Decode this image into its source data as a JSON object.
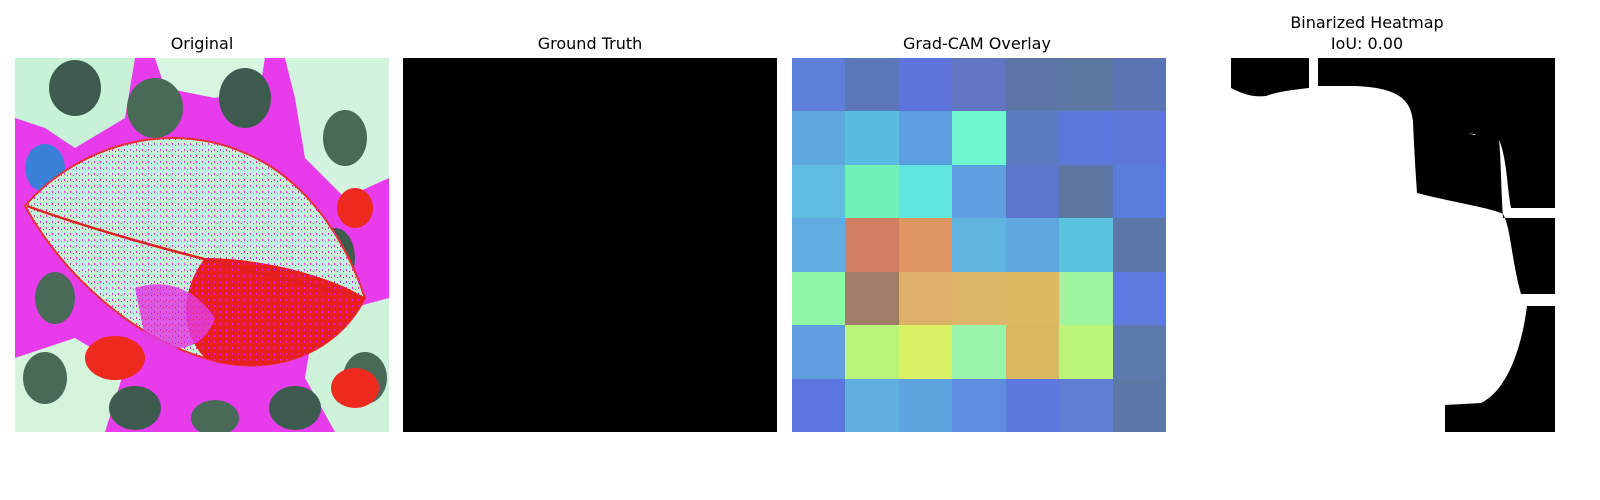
{
  "panels": [
    {
      "title": "Original"
    },
    {
      "title": "Ground Truth"
    },
    {
      "title": "Grad-CAM Overlay"
    },
    {
      "title": "Binarized Heatmap",
      "subtitle": "IoU: 0.00"
    }
  ],
  "colors": {
    "background": "#ffffff",
    "mask_fg": "#000000",
    "mask_bg": "#ffffff"
  },
  "gradcam_grid": [
    [
      "#5d7fd9",
      "#5b77ba",
      "#5d74dc",
      "#6076c2",
      "#5b75a7",
      "#5b78a3",
      "#5b74b3"
    ],
    [
      "#5fa8df",
      "#58bde0",
      "#5c9edf",
      "#6ef6cf",
      "#5b7bc0",
      "#5a77dc",
      "#5c77d6"
    ],
    [
      "#5ebde0",
      "#6ff2b5",
      "#5ee6df",
      "#5d9fdf",
      "#5a77ca",
      "#5c78a2",
      "#5a7ddc"
    ],
    [
      "#60ace0",
      "#d17e63",
      "#de9663",
      "#60b5e0",
      "#5ea8df",
      "#5ac3e0",
      "#5c78a6"
    ],
    [
      "#8ef6a5",
      "#a07d66",
      "#ddb167",
      "#dcb769",
      "#dcba63",
      "#9df59f",
      "#5d7bde"
    ],
    [
      "#609ee0",
      "#b9f577",
      "#d9f266",
      "#9af4a9",
      "#dcb761",
      "#baf578",
      "#5c7aac"
    ],
    [
      "#5d75de",
      "#5eafe0",
      "#5ea4de",
      "#5f8ddf",
      "#5c7ade",
      "#5d7ed2",
      "#5b78a6"
    ]
  ]
}
